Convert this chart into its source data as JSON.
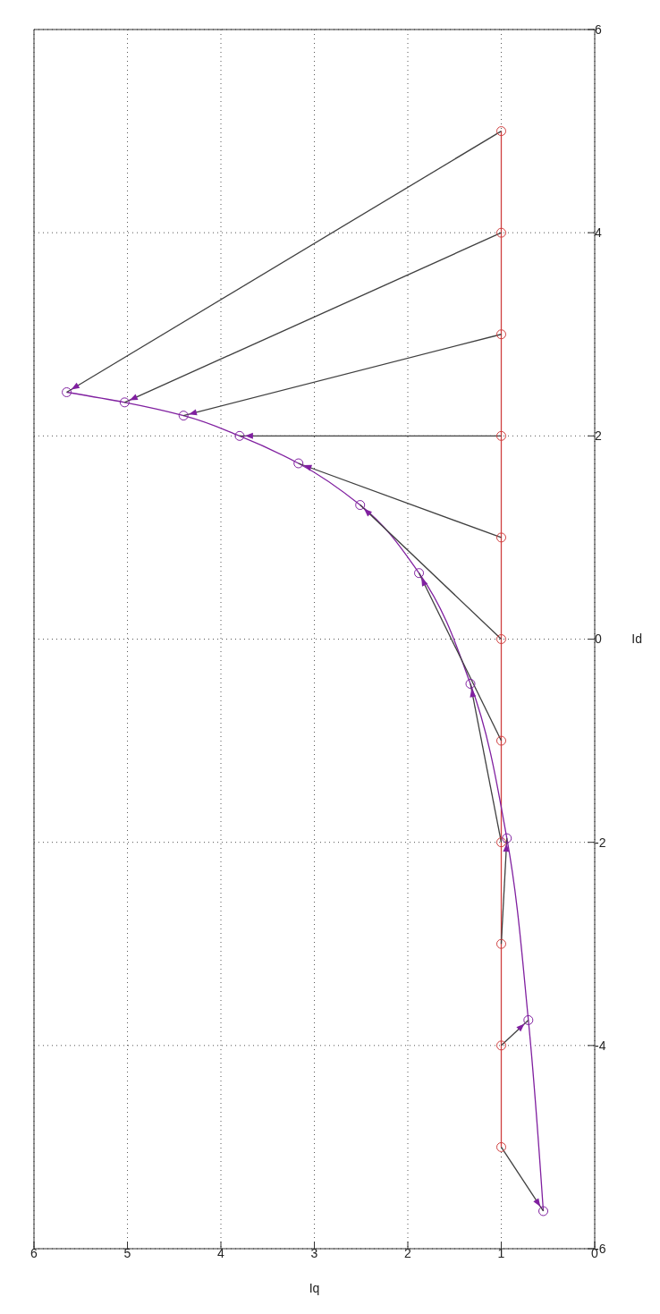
{
  "chart_data": {
    "type": "line",
    "xlabel": "Iq",
    "ylabel": "Id",
    "xlim": [
      6,
      0
    ],
    "xticks": [
      6,
      5,
      4,
      3,
      2,
      1,
      0
    ],
    "ylim": [
      -6,
      6
    ],
    "yticks": [
      -6,
      -4,
      -2,
      0,
      2,
      4,
      6
    ],
    "grid": true,
    "marker": "circle",
    "series": [
      {
        "color": "#d04040",
        "x": [
          1,
          1,
          1,
          1,
          1,
          1,
          1,
          1,
          1,
          1,
          1
        ],
        "values": [
          -5,
          -4,
          -3,
          -2,
          -1,
          0,
          1,
          2,
          3,
          4,
          5
        ]
      },
      {
        "color": "#8020a0",
        "x": [
          0.55,
          0.71,
          0.94,
          1.33,
          1.88,
          2.51,
          3.17,
          3.8,
          4.4,
          5.03,
          5.65
        ],
        "values": [
          -5.63,
          -3.75,
          -1.96,
          -0.44,
          0.65,
          1.32,
          1.73,
          2.0,
          2.2,
          2.33,
          2.43
        ]
      },
      {
        "color": "#404040",
        "marker": "none",
        "x": [
          1,
          0.55
        ],
        "values": [
          -5,
          -5.63
        ]
      },
      {
        "color": "#404040",
        "marker": "none",
        "x": [
          1,
          0.71
        ],
        "values": [
          -4,
          -3.75
        ]
      },
      {
        "color": "#404040",
        "marker": "none",
        "x": [
          1,
          0.94
        ],
        "values": [
          -3,
          -1.96
        ]
      },
      {
        "color": "#404040",
        "marker": "none",
        "x": [
          1,
          1.33
        ],
        "values": [
          -2,
          -0.44
        ]
      },
      {
        "color": "#404040",
        "marker": "none",
        "x": [
          1,
          1.88
        ],
        "values": [
          -1,
          0.65
        ]
      },
      {
        "color": "#404040",
        "marker": "none",
        "x": [
          1,
          2.51
        ],
        "values": [
          0,
          1.32
        ]
      },
      {
        "color": "#404040",
        "marker": "none",
        "x": [
          1,
          3.17
        ],
        "values": [
          1,
          1.73
        ]
      },
      {
        "color": "#404040",
        "marker": "none",
        "x": [
          1,
          3.8
        ],
        "values": [
          2,
          2.0
        ]
      },
      {
        "color": "#404040",
        "marker": "none",
        "x": [
          1,
          4.4
        ],
        "values": [
          3,
          2.2
        ]
      },
      {
        "color": "#404040",
        "marker": "none",
        "x": [
          1,
          5.03
        ],
        "values": [
          4,
          2.33
        ]
      },
      {
        "color": "#404040",
        "marker": "none",
        "x": [
          1,
          5.65
        ],
        "values": [
          5,
          2.43
        ]
      }
    ]
  }
}
